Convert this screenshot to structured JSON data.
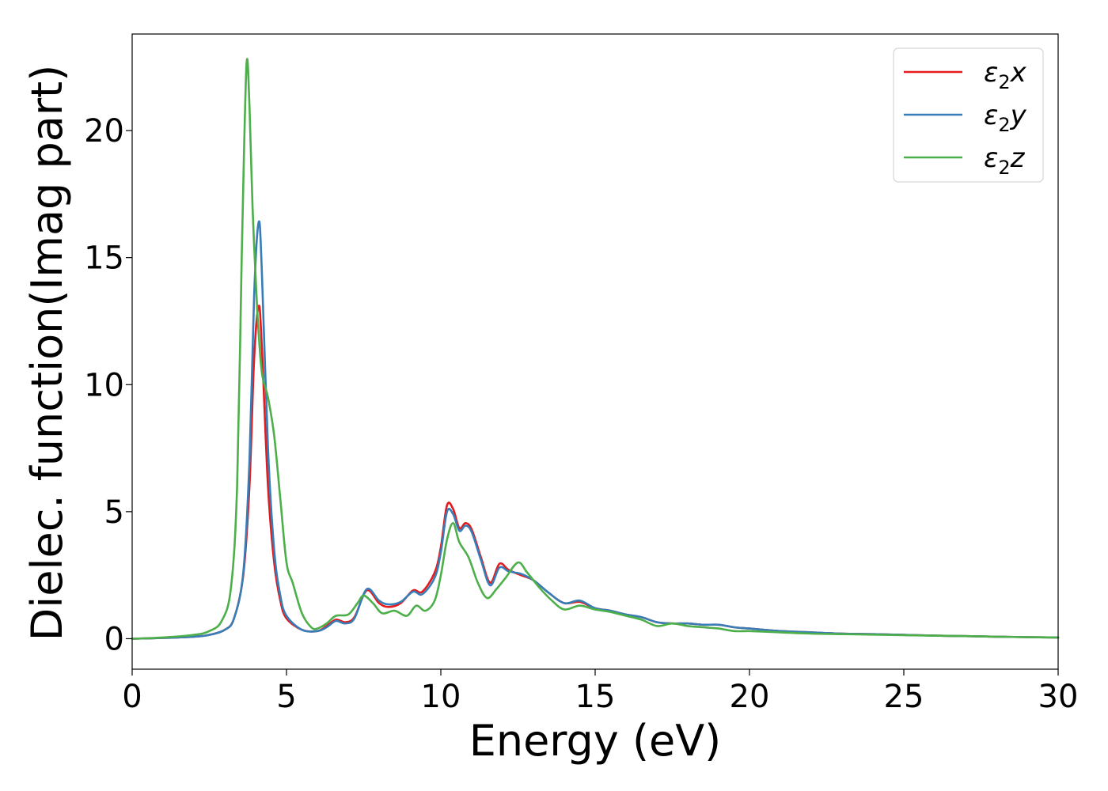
{
  "chart_data": {
    "type": "line",
    "xlabel": "Energy (eV)",
    "ylabel": "Dielec. function(Imag part)",
    "xlim": [
      0,
      30
    ],
    "ylim": [
      -1.2,
      23.8
    ],
    "xticks": [
      0,
      5,
      10,
      15,
      20,
      25,
      30
    ],
    "yticks": [
      0,
      5,
      10,
      15,
      20
    ],
    "grid": false,
    "legend": {
      "placement": "top-right",
      "entries": [
        {
          "symbol": "ε",
          "sub": "2",
          "axis": "x"
        },
        {
          "symbol": "ε",
          "sub": "2",
          "axis": "y"
        },
        {
          "symbol": "ε",
          "sub": "2",
          "axis": "z"
        }
      ]
    },
    "series": [
      {
        "name": "ε2x",
        "color": "#e41a1c",
        "points": [
          [
            0,
            0.0
          ],
          [
            1,
            0.03
          ],
          [
            2,
            0.08
          ],
          [
            2.5,
            0.15
          ],
          [
            3.0,
            0.35
          ],
          [
            3.3,
            0.8
          ],
          [
            3.6,
            2.5
          ],
          [
            3.8,
            6.0
          ],
          [
            3.95,
            11.0
          ],
          [
            4.1,
            13.1
          ],
          [
            4.2,
            11.5
          ],
          [
            4.4,
            6.0
          ],
          [
            4.6,
            3.0
          ],
          [
            4.8,
            1.5
          ],
          [
            5.0,
            0.8
          ],
          [
            5.5,
            0.35
          ],
          [
            6.0,
            0.3
          ],
          [
            6.3,
            0.5
          ],
          [
            6.6,
            0.75
          ],
          [
            6.9,
            0.65
          ],
          [
            7.2,
            0.85
          ],
          [
            7.6,
            1.9
          ],
          [
            8.0,
            1.4
          ],
          [
            8.3,
            1.25
          ],
          [
            8.7,
            1.4
          ],
          [
            9.1,
            1.9
          ],
          [
            9.4,
            1.85
          ],
          [
            9.8,
            2.6
          ],
          [
            10.0,
            3.6
          ],
          [
            10.2,
            5.25
          ],
          [
            10.4,
            5.1
          ],
          [
            10.6,
            4.35
          ],
          [
            10.8,
            4.55
          ],
          [
            11.0,
            4.3
          ],
          [
            11.3,
            3.2
          ],
          [
            11.6,
            2.2
          ],
          [
            11.9,
            2.95
          ],
          [
            12.2,
            2.7
          ],
          [
            12.6,
            2.5
          ],
          [
            13.0,
            2.3
          ],
          [
            13.5,
            1.8
          ],
          [
            14.0,
            1.4
          ],
          [
            14.5,
            1.45
          ],
          [
            15.0,
            1.2
          ],
          [
            15.5,
            1.1
          ],
          [
            16.0,
            0.95
          ],
          [
            16.5,
            0.85
          ],
          [
            17.0,
            0.65
          ],
          [
            17.5,
            0.6
          ],
          [
            18.0,
            0.6
          ],
          [
            18.5,
            0.55
          ],
          [
            19.0,
            0.55
          ],
          [
            19.5,
            0.45
          ],
          [
            20.0,
            0.4
          ],
          [
            21,
            0.3
          ],
          [
            22,
            0.25
          ],
          [
            23,
            0.2
          ],
          [
            24,
            0.18
          ],
          [
            25,
            0.15
          ],
          [
            26,
            0.12
          ],
          [
            27,
            0.1
          ],
          [
            28,
            0.08
          ],
          [
            29,
            0.06
          ],
          [
            30,
            0.05
          ]
        ]
      },
      {
        "name": "ε2y",
        "color": "#377eb8",
        "points": [
          [
            0,
            0.0
          ],
          [
            1,
            0.03
          ],
          [
            2,
            0.08
          ],
          [
            2.5,
            0.15
          ],
          [
            3.0,
            0.35
          ],
          [
            3.3,
            0.8
          ],
          [
            3.6,
            2.6
          ],
          [
            3.8,
            7.0
          ],
          [
            3.95,
            13.5
          ],
          [
            4.1,
            16.4
          ],
          [
            4.2,
            14.5
          ],
          [
            4.4,
            7.5
          ],
          [
            4.6,
            3.5
          ],
          [
            4.8,
            1.7
          ],
          [
            5.0,
            0.9
          ],
          [
            5.5,
            0.35
          ],
          [
            6.0,
            0.3
          ],
          [
            6.3,
            0.45
          ],
          [
            6.6,
            0.7
          ],
          [
            6.9,
            0.6
          ],
          [
            7.2,
            0.8
          ],
          [
            7.6,
            1.95
          ],
          [
            8.0,
            1.5
          ],
          [
            8.3,
            1.35
          ],
          [
            8.7,
            1.45
          ],
          [
            9.1,
            1.85
          ],
          [
            9.4,
            1.75
          ],
          [
            9.8,
            2.4
          ],
          [
            10.0,
            3.4
          ],
          [
            10.2,
            5.0
          ],
          [
            10.4,
            4.9
          ],
          [
            10.6,
            4.25
          ],
          [
            10.8,
            4.45
          ],
          [
            11.0,
            4.2
          ],
          [
            11.3,
            3.1
          ],
          [
            11.6,
            2.1
          ],
          [
            11.9,
            2.8
          ],
          [
            12.2,
            2.65
          ],
          [
            12.6,
            2.55
          ],
          [
            13.0,
            2.3
          ],
          [
            13.5,
            1.8
          ],
          [
            14.0,
            1.4
          ],
          [
            14.5,
            1.5
          ],
          [
            15.0,
            1.2
          ],
          [
            15.5,
            1.1
          ],
          [
            16.0,
            0.95
          ],
          [
            16.5,
            0.85
          ],
          [
            17.0,
            0.65
          ],
          [
            17.5,
            0.6
          ],
          [
            18.0,
            0.6
          ],
          [
            18.5,
            0.55
          ],
          [
            19.0,
            0.55
          ],
          [
            19.5,
            0.45
          ],
          [
            20.0,
            0.4
          ],
          [
            21,
            0.3
          ],
          [
            22,
            0.25
          ],
          [
            23,
            0.2
          ],
          [
            24,
            0.18
          ],
          [
            25,
            0.15
          ],
          [
            26,
            0.12
          ],
          [
            27,
            0.1
          ],
          [
            28,
            0.08
          ],
          [
            29,
            0.06
          ],
          [
            30,
            0.05
          ]
        ]
      },
      {
        "name": "ε2z",
        "color": "#4daf4a",
        "points": [
          [
            0,
            0.0
          ],
          [
            1,
            0.05
          ],
          [
            2,
            0.15
          ],
          [
            2.5,
            0.3
          ],
          [
            2.9,
            0.7
          ],
          [
            3.2,
            2.0
          ],
          [
            3.4,
            6.0
          ],
          [
            3.55,
            15.0
          ],
          [
            3.7,
            22.5
          ],
          [
            3.8,
            21.0
          ],
          [
            3.9,
            17.0
          ],
          [
            4.05,
            13.0
          ],
          [
            4.2,
            10.5
          ],
          [
            4.4,
            9.5
          ],
          [
            4.6,
            8.0
          ],
          [
            4.8,
            5.5
          ],
          [
            5.0,
            3.0
          ],
          [
            5.2,
            2.2
          ],
          [
            5.5,
            1.0
          ],
          [
            5.8,
            0.45
          ],
          [
            6.0,
            0.4
          ],
          [
            6.3,
            0.6
          ],
          [
            6.6,
            0.9
          ],
          [
            7.0,
            0.95
          ],
          [
            7.3,
            1.4
          ],
          [
            7.5,
            1.7
          ],
          [
            7.8,
            1.4
          ],
          [
            8.1,
            1.0
          ],
          [
            8.5,
            1.1
          ],
          [
            8.9,
            0.9
          ],
          [
            9.2,
            1.3
          ],
          [
            9.5,
            1.1
          ],
          [
            9.8,
            1.5
          ],
          [
            10.0,
            2.5
          ],
          [
            10.2,
            3.9
          ],
          [
            10.4,
            4.55
          ],
          [
            10.6,
            3.8
          ],
          [
            10.9,
            3.2
          ],
          [
            11.2,
            2.2
          ],
          [
            11.5,
            1.6
          ],
          [
            11.8,
            1.95
          ],
          [
            12.1,
            2.4
          ],
          [
            12.5,
            3.0
          ],
          [
            12.8,
            2.6
          ],
          [
            13.2,
            2.0
          ],
          [
            13.6,
            1.5
          ],
          [
            14.0,
            1.15
          ],
          [
            14.5,
            1.3
          ],
          [
            15.0,
            1.15
          ],
          [
            15.5,
            1.05
          ],
          [
            16.0,
            0.9
          ],
          [
            16.5,
            0.75
          ],
          [
            17.0,
            0.5
          ],
          [
            17.5,
            0.6
          ],
          [
            18.0,
            0.5
          ],
          [
            18.5,
            0.45
          ],
          [
            19.0,
            0.4
          ],
          [
            19.5,
            0.3
          ],
          [
            20.0,
            0.3
          ],
          [
            21,
            0.25
          ],
          [
            22,
            0.2
          ],
          [
            23,
            0.18
          ],
          [
            24,
            0.16
          ],
          [
            25,
            0.14
          ],
          [
            26,
            0.12
          ],
          [
            27,
            0.1
          ],
          [
            28,
            0.08
          ],
          [
            29,
            0.06
          ],
          [
            30,
            0.05
          ]
        ]
      }
    ]
  }
}
